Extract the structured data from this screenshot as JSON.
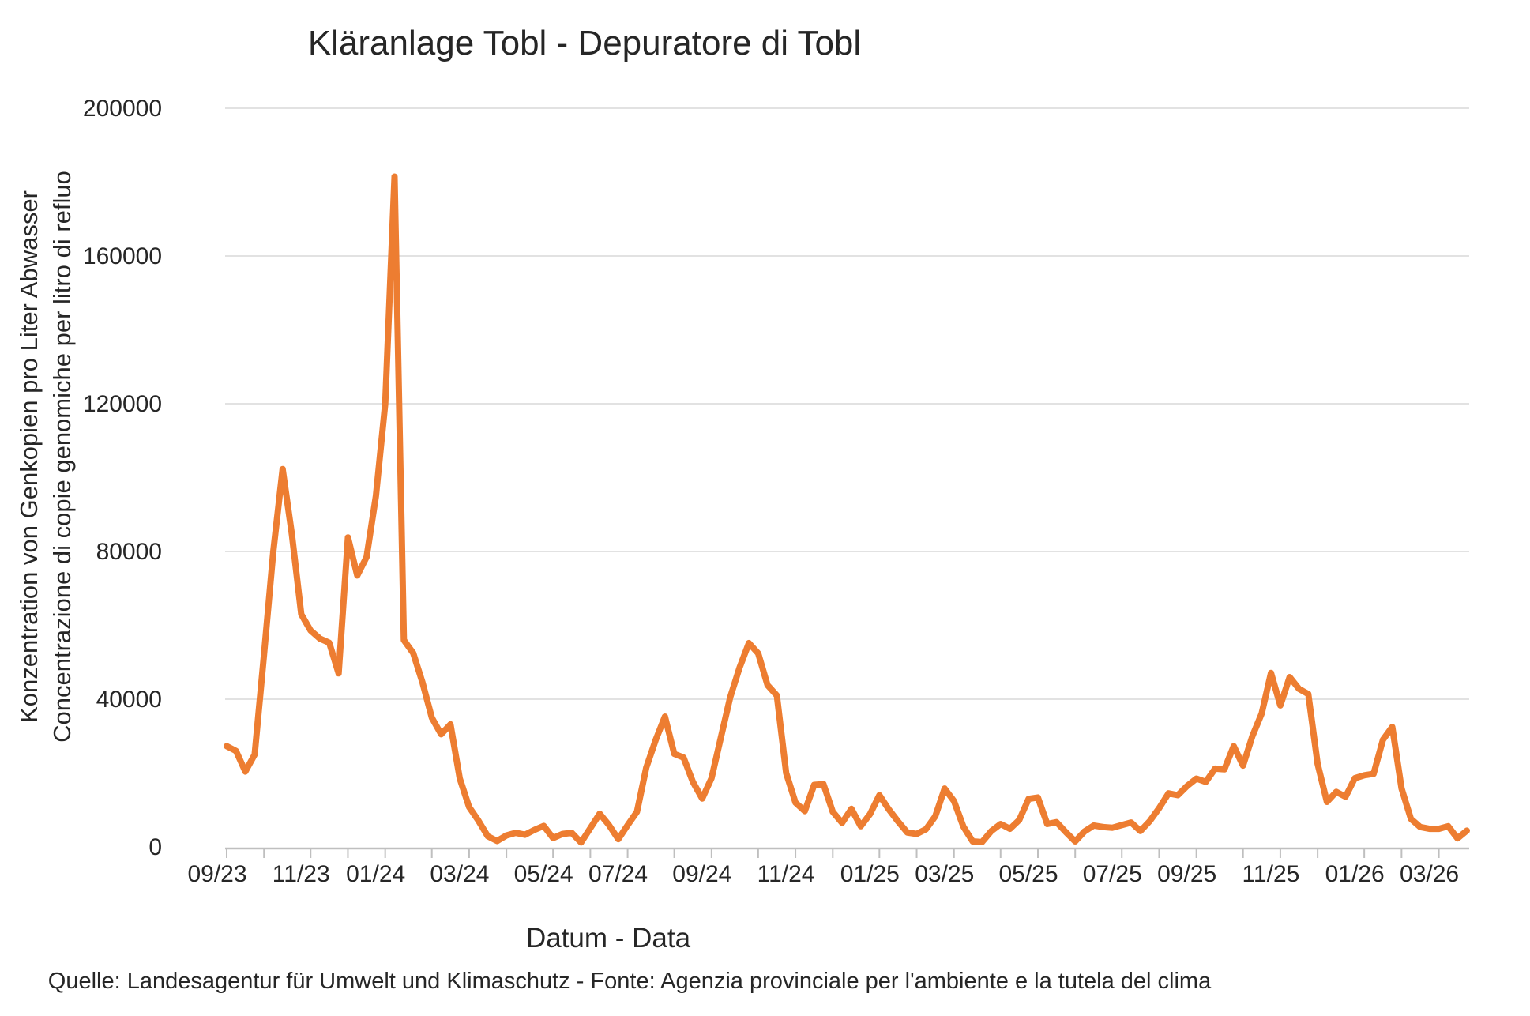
{
  "chart_data": {
    "type": "line",
    "title": "Kläranlage Tobl - Depuratore di Tobl",
    "ylabel_line1": "Konzentration von Genkopien pro Liter Abwasser",
    "ylabel_line2": "Concentrazione di copie genomiche per litro di refluo",
    "xlabel": "Datum - Data",
    "source": "Quelle: Landesagentur für Umwelt und Klimaschutz - Fonte: Agenzia provinciale per l'ambiente e la tutela del clima",
    "legend": "none",
    "grid": "horizontal",
    "ylim": [
      0,
      200000
    ],
    "y_ticks": [
      0,
      40000,
      80000,
      120000,
      160000,
      200000
    ],
    "y_tick_labels": [
      "0",
      "40000",
      "80000",
      "120000",
      "160000",
      "200000"
    ],
    "colors": {
      "line": "#ED7D31",
      "grid": "#D9D9D9",
      "axis": "#BFBFBF",
      "text": "#262626"
    },
    "x_tick_labels": [
      {
        "index": 0,
        "label": "09/23"
      },
      {
        "index": 9,
        "label": "11/23"
      },
      {
        "index": 17,
        "label": "01/24"
      },
      {
        "index": 26,
        "label": "03/24"
      },
      {
        "index": 35,
        "label": "05/24"
      },
      {
        "index": 43,
        "label": "07/24"
      },
      {
        "index": 52,
        "label": "09/24"
      },
      {
        "index": 61,
        "label": "11/24"
      },
      {
        "index": 70,
        "label": "01/25"
      },
      {
        "index": 78,
        "label": "03/25"
      },
      {
        "index": 87,
        "label": "05/25"
      },
      {
        "index": 96,
        "label": "07/25"
      },
      {
        "index": 104,
        "label": "09/25"
      },
      {
        "index": 113,
        "label": "11/25"
      },
      {
        "index": 122,
        "label": "01/26"
      },
      {
        "index": 130,
        "label": "03/26"
      }
    ],
    "month_tick_indices": [
      0,
      4,
      9,
      13,
      17,
      22,
      26,
      30,
      35,
      39,
      43,
      48,
      52,
      57,
      61,
      65,
      70,
      74,
      78,
      83,
      87,
      91,
      96,
      100,
      104,
      109,
      113,
      117,
      122,
      126,
      130
    ],
    "x": [
      "2023-09-04",
      "2023-09-11",
      "2023-09-18",
      "2023-09-25",
      "2023-10-02",
      "2023-10-09",
      "2023-10-16",
      "2023-10-23",
      "2023-10-30",
      "2023-11-06",
      "2023-11-13",
      "2023-11-20",
      "2023-11-27",
      "2023-12-04",
      "2023-12-11",
      "2023-12-18",
      "2023-12-25",
      "2024-01-01",
      "2024-01-08",
      "2024-01-15",
      "2024-01-22",
      "2024-01-29",
      "2024-02-05",
      "2024-02-12",
      "2024-02-19",
      "2024-02-26",
      "2024-03-04",
      "2024-03-11",
      "2024-03-18",
      "2024-03-25",
      "2024-04-01",
      "2024-04-08",
      "2024-04-15",
      "2024-04-22",
      "2024-04-29",
      "2024-05-06",
      "2024-05-13",
      "2024-05-20",
      "2024-05-27",
      "2024-06-03",
      "2024-06-10",
      "2024-06-17",
      "2024-06-24",
      "2024-07-01",
      "2024-07-08",
      "2024-07-15",
      "2024-07-22",
      "2024-07-29",
      "2024-08-05",
      "2024-08-12",
      "2024-08-19",
      "2024-08-26",
      "2024-09-02",
      "2024-09-09",
      "2024-09-16",
      "2024-09-23",
      "2024-09-30",
      "2024-10-07",
      "2024-10-14",
      "2024-10-21",
      "2024-10-28",
      "2024-11-04",
      "2024-11-11",
      "2024-11-18",
      "2024-11-25",
      "2024-12-02",
      "2024-12-09",
      "2024-12-16",
      "2024-12-23",
      "2024-12-30",
      "2025-01-06",
      "2025-01-13",
      "2025-01-20",
      "2025-01-27",
      "2025-02-03",
      "2025-02-10",
      "2025-02-17",
      "2025-02-24",
      "2025-03-03",
      "2025-03-10",
      "2025-03-17",
      "2025-03-24",
      "2025-03-31",
      "2025-04-07",
      "2025-04-14",
      "2025-04-21",
      "2025-04-28",
      "2025-05-05",
      "2025-05-12",
      "2025-05-19",
      "2025-05-26",
      "2025-06-02",
      "2025-06-09",
      "2025-06-16",
      "2025-06-23",
      "2025-06-30",
      "2025-07-07",
      "2025-07-14",
      "2025-07-21",
      "2025-07-28",
      "2025-08-04",
      "2025-08-11",
      "2025-08-18",
      "2025-08-25",
      "2025-09-01",
      "2025-09-08",
      "2025-09-15",
      "2025-09-22",
      "2025-09-29",
      "2025-10-06",
      "2025-10-13",
      "2025-10-20",
      "2025-10-27",
      "2025-11-03",
      "2025-11-10",
      "2025-11-17",
      "2025-11-24",
      "2025-12-01",
      "2025-12-08",
      "2025-12-15",
      "2025-12-22",
      "2025-12-29",
      "2026-01-05",
      "2026-01-12",
      "2026-01-19",
      "2026-01-26",
      "2026-02-02",
      "2026-02-09",
      "2026-02-16",
      "2026-02-23",
      "2026-03-02",
      "2026-03-09",
      "2026-03-16",
      "2026-03-23"
    ],
    "values": [
      27300,
      26000,
      20400,
      25000,
      52000,
      80000,
      102300,
      84500,
      63000,
      58600,
      56400,
      55300,
      47000,
      83800,
      73500,
      78500,
      95000,
      120000,
      181500,
      56000,
      52500,
      44500,
      35000,
      30500,
      33200,
      18500,
      10800,
      7100,
      2900,
      1600,
      3100,
      3800,
      3300,
      4600,
      5700,
      2400,
      3500,
      3800,
      1200,
      5100,
      9000,
      5900,
      2100,
      5900,
      9500,
      21500,
      28900,
      35300,
      25200,
      24200,
      17600,
      13100,
      18600,
      29600,
      40500,
      48500,
      55200,
      52400,
      43800,
      41000,
      20000,
      12000,
      9700,
      16800,
      17000,
      9500,
      6500,
      10300,
      5600,
      8900,
      14000,
      10200,
      6900,
      3900,
      3500,
      4800,
      8300,
      15800,
      12400,
      5500,
      1500,
      1300,
      4300,
      6200,
      4900,
      7300,
      13000,
      13400,
      6200,
      6700,
      4000,
      1500,
      4200,
      5800,
      5400,
      5200,
      5900,
      6600,
      4300,
      7000,
      10500,
      14500,
      14000,
      16500,
      18500,
      17600,
      21200,
      21000,
      27300,
      22000,
      30000,
      36100,
      47100,
      38300,
      46000,
      42800,
      41400,
      22500,
      12200,
      14900,
      13600,
      18600,
      19400,
      19800,
      29000,
      32500,
      15800,
      7600,
      5400,
      4900,
      4900,
      5600,
      2300,
      4400
    ]
  }
}
